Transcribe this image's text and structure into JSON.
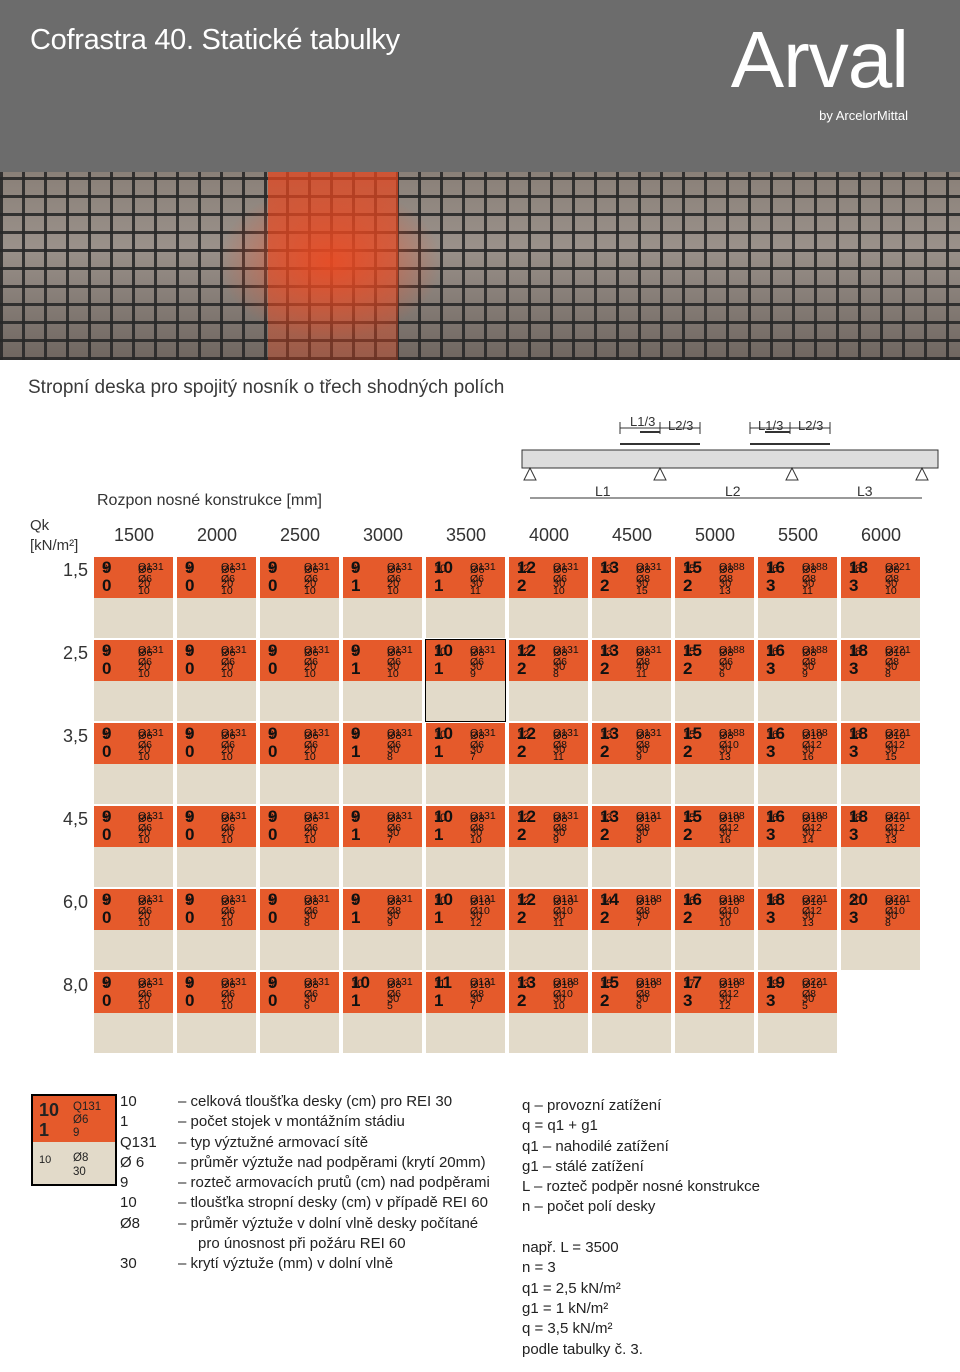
{
  "header": {
    "title": "Cofrastra 40. Statické tabulky",
    "logo": "Arval",
    "logo_sub": "by ArcelorMittal"
  },
  "subtitle": "Stropní deska pro spojitý nosník o třech shodných polích",
  "diagram": {
    "l13a": "L1/3",
    "l23a": "L2/3",
    "l13b": "L1/3",
    "l23b": "L2/3",
    "l1": "L1",
    "l2": "L2",
    "l3": "L3"
  },
  "table": {
    "span_label": "Rozpon nosné konstrukce [mm]",
    "load_label_1": "Qk",
    "load_label_2": "[kN/m²]",
    "spans": [
      "1500",
      "2000",
      "2500",
      "3000",
      "3500",
      "4000",
      "4500",
      "5000",
      "5500",
      "6000"
    ],
    "loads": [
      "1,5",
      "2,5",
      "3,5",
      "4,5",
      "6,0",
      "8,0"
    ],
    "rows": [
      [
        [
          "9",
          "0",
          "Q131",
          "Ø6",
          "10",
          "9",
          "Ø6",
          "20"
        ],
        [
          "9",
          "0",
          "Q131",
          "Ø6",
          "10",
          "9",
          "Ø6",
          "20"
        ],
        [
          "9",
          "0",
          "Q131",
          "Ø6",
          "10",
          "9",
          "Ø6",
          "20"
        ],
        [
          "9",
          "1",
          "Q131",
          "Ø6",
          "10",
          "9",
          "Ø6",
          "20"
        ],
        [
          "10",
          "1",
          "Q131",
          "Ø6",
          "11",
          "10",
          "Ø6",
          "30"
        ],
        [
          "12",
          "2",
          "Q131",
          "Ø6",
          "10",
          "12",
          "Ø6",
          "30"
        ],
        [
          "13",
          "2",
          "Q131",
          "Ø8",
          "15",
          "13",
          "Ø8",
          "30"
        ],
        [
          "15",
          "2",
          "Q188",
          "Ø8",
          "13",
          "15",
          "Ø8",
          "30"
        ],
        [
          "16",
          "3",
          "Q188",
          "Ø8",
          "11",
          "16",
          "Ø8",
          "30"
        ],
        [
          "18",
          "3",
          "Q221",
          "Ø8",
          "10",
          "18",
          "Ø8",
          "30"
        ]
      ],
      [
        [
          "9",
          "0",
          "Q131",
          "Ø6",
          "10",
          "9",
          "Ø6",
          "20"
        ],
        [
          "9",
          "0",
          "Q131",
          "Ø6",
          "10",
          "9",
          "Ø6",
          "20"
        ],
        [
          "9",
          "0",
          "Q131",
          "Ø6",
          "10",
          "9",
          "Ø6",
          "20"
        ],
        [
          "9",
          "1",
          "Q131",
          "Ø6",
          "10",
          "9",
          "Ø6",
          "30"
        ],
        [
          "10",
          "1",
          "Q131",
          "Ø6",
          "9",
          "10",
          "Ø8",
          "30"
        ],
        [
          "12",
          "2",
          "Q131",
          "Ø6",
          "8",
          "12",
          "Ø8",
          "30"
        ],
        [
          "13",
          "2",
          "Q131",
          "Ø8",
          "11",
          "13",
          "Ø8",
          "40"
        ],
        [
          "15",
          "2",
          "Q188",
          "Ø6",
          "6",
          "15",
          "Ø8",
          "30"
        ],
        [
          "16",
          "3",
          "Q188",
          "Ø8",
          "9",
          "16",
          "Ø8",
          "30"
        ],
        [
          "18",
          "3",
          "Q221",
          "Ø8",
          "8",
          "18",
          "Ø10",
          "30"
        ]
      ],
      [
        [
          "9",
          "0",
          "Q131",
          "Ø6",
          "10",
          "9",
          "Ø6",
          "20"
        ],
        [
          "9",
          "0",
          "Q131",
          "Ø6",
          "10",
          "9",
          "Ø6",
          "20"
        ],
        [
          "9",
          "0",
          "Q131",
          "Ø6",
          "10",
          "9",
          "Ø6",
          "20"
        ],
        [
          "9",
          "1",
          "Q131",
          "Ø6",
          "8",
          "9",
          "Ø8",
          "30"
        ],
        [
          "10",
          "1",
          "Q131",
          "Ø6",
          "7",
          "10",
          "Ø8",
          "30"
        ],
        [
          "12",
          "2",
          "Q131",
          "Ø8",
          "11",
          "12",
          "Ø8",
          "30"
        ],
        [
          "13",
          "2",
          "Q131",
          "Ø8",
          "9",
          "13",
          "Ø8",
          "30"
        ],
        [
          "15",
          "2",
          "Q188",
          "Ø10",
          "13",
          "15",
          "Ø8",
          "30"
        ],
        [
          "16",
          "3",
          "Q188",
          "Ø12",
          "16",
          "16",
          "Ø10",
          "30"
        ],
        [
          "18",
          "3",
          "Q221",
          "Ø12",
          "15",
          "18",
          "Ø10",
          "30"
        ]
      ],
      [
        [
          "9",
          "0",
          "Q131",
          "Ø6",
          "10",
          "9",
          "Ø6",
          "20"
        ],
        [
          "9",
          "0",
          "Q131",
          "Ø6",
          "10",
          "9",
          "Ø6",
          "20"
        ],
        [
          "9",
          "0",
          "Q131",
          "Ø6",
          "10",
          "9",
          "Ø6",
          "20"
        ],
        [
          "9",
          "1",
          "Q131",
          "Ø6",
          "7",
          "9",
          "Ø8",
          "30"
        ],
        [
          "10",
          "1",
          "Q131",
          "Ø8",
          "10",
          "10",
          "Ø8",
          "30"
        ],
        [
          "12",
          "2",
          "Q131",
          "Ø8",
          "9",
          "12",
          "Ø8",
          "30"
        ],
        [
          "13",
          "2",
          "Q131",
          "Ø8",
          "8",
          "13",
          "Ø10",
          "30"
        ],
        [
          "15",
          "2",
          "Q188",
          "Ø12",
          "16",
          "15",
          "Ø10",
          "30"
        ],
        [
          "16",
          "3",
          "Q188",
          "Ø12",
          "14",
          "16",
          "Ø10",
          "30"
        ],
        [
          "18",
          "3",
          "Q221",
          "Ø12",
          "13",
          "18",
          "Ø10",
          "30"
        ]
      ],
      [
        [
          "9",
          "0",
          "Q131",
          "Ø6",
          "10",
          "9",
          "Ø6",
          "20"
        ],
        [
          "9",
          "0",
          "Q131",
          "Ø6",
          "10",
          "9",
          "Ø6",
          "20"
        ],
        [
          "9",
          "0",
          "Q131",
          "Ø6",
          "8",
          "9",
          "Ø8",
          "30"
        ],
        [
          "9",
          "1",
          "Q131",
          "Ø8",
          "9",
          "9",
          "Ø8",
          "30"
        ],
        [
          "10",
          "1",
          "Q131",
          "Ø10",
          "12",
          "10",
          "Ø10",
          "30"
        ],
        [
          "12",
          "2",
          "Q131",
          "Ø10",
          "11",
          "12",
          "Ø10",
          "30"
        ],
        [
          "14",
          "2",
          "Q188",
          "Ø8",
          "7",
          "14",
          "Ø10",
          "30"
        ],
        [
          "16",
          "2",
          "Q188",
          "Ø10",
          "10",
          "16",
          "Ø10",
          "30"
        ],
        [
          "18",
          "3",
          "Q221",
          "Ø12",
          "13",
          "18",
          "Ø10",
          "30"
        ],
        [
          "20",
          "3",
          "Q221",
          "Ø10",
          "8",
          "20",
          "Ø10",
          "30"
        ]
      ],
      [
        [
          "9",
          "0",
          "Q131",
          "Ø6",
          "10",
          "9",
          "Ø6",
          "20"
        ],
        [
          "9",
          "0",
          "Q131",
          "Ø6",
          "10",
          "9",
          "Ø6",
          "20"
        ],
        [
          "9",
          "0",
          "Q131",
          "Ø6",
          "6",
          "9",
          "Ø8",
          "30"
        ],
        [
          "10",
          "1",
          "Q131",
          "Ø6",
          "5",
          "10",
          "Ø8",
          "30"
        ],
        [
          "11",
          "1",
          "Q131",
          "Ø8",
          "7",
          "11",
          "Ø10",
          "30"
        ],
        [
          "13",
          "2",
          "Q188",
          "Ø10",
          "10",
          "13",
          "Ø10",
          "30"
        ],
        [
          "15",
          "2",
          "Q188",
          "Ø8",
          "6",
          "15",
          "Ø10",
          "30"
        ],
        [
          "17",
          "3",
          "Q188",
          "Ø12",
          "12",
          "17",
          "Ø10",
          "30"
        ],
        [
          "19",
          "3",
          "Q221",
          "Ø8",
          "5",
          "19",
          "Ø10",
          "30"
        ]
      ]
    ]
  },
  "legend_box": {
    "a": "10",
    "b": "1",
    "c": "Q131",
    "d": "Ø6",
    "e": "9",
    "f": "10",
    "g": "Ø8",
    "h": "30"
  },
  "legend": [
    {
      "k": "10",
      "v": "– celková tloušťka desky (cm) pro REI 30"
    },
    {
      "k": "1",
      "v": "– počet stojek v montážním stádiu"
    },
    {
      "k": "Q131",
      "v": "– typ výztužné armovací sítě"
    },
    {
      "k": "Ø 6",
      "v": "– průměr výztuže nad podpěrami (krytí 20mm)"
    },
    {
      "k": "9",
      "v": "– rozteč armovacích prutů (cm) nad podpěrami"
    },
    {
      "k": "10",
      "v": "– tloušťka stropní desky (cm) v případě REI 60"
    },
    {
      "k": "Ø8",
      "v": "– průměr výztuže v dolní vlně desky počítané"
    },
    {
      "k": "",
      "v": "pro únosnost při požáru REI 60"
    },
    {
      "k": "30",
      "v": "– krytí výztuže (mm) v dolní vlně"
    }
  ],
  "notes": [
    "q – provozní zatížení",
    "q = q1 + g1",
    "q1 – nahodilé zatížení",
    "g1 – stálé zatížení",
    "L – rozteč podpěr nosné konstrukce",
    "n – počet polí desky",
    "",
    "např.     L = 3500",
    "n = 3",
    "q1 = 2,5 kN/m²",
    "g1 = 1 kN/m²",
    "q = 3,5 kN/m²",
    "podle tabulky č. 3."
  ]
}
